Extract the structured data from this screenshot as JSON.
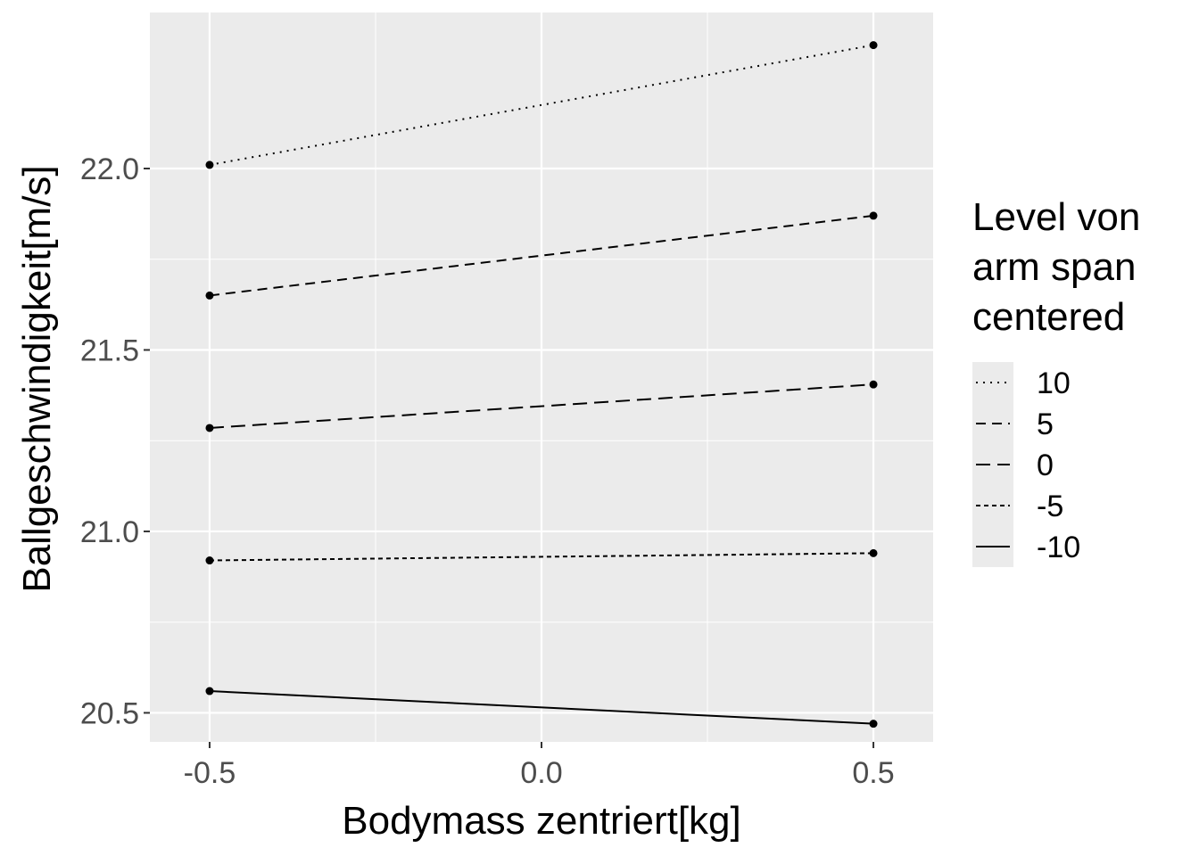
{
  "chart_data": {
    "type": "line",
    "xlabel": "Bodymass zentriert[kg]",
    "ylabel": "Ballgeschwindigkeit[m/s]",
    "x": [
      -0.5,
      0.5
    ],
    "xlim": [
      -0.59,
      0.59
    ],
    "ylim": [
      20.42,
      22.43
    ],
    "x_ticks": [
      -0.5,
      0.0,
      0.5
    ],
    "x_tick_labels": [
      "-0.5",
      "0.0",
      "0.5"
    ],
    "y_ticks": [
      20.5,
      21.0,
      21.5,
      22.0
    ],
    "y_tick_labels": [
      "20.5",
      "21.0",
      "21.5",
      "22.0"
    ],
    "grid": true,
    "legend": {
      "position": "right",
      "title_lines": [
        "Level von",
        "arm span",
        "centered"
      ]
    },
    "series": [
      {
        "name": "10",
        "values": [
          22.01,
          22.34
        ],
        "linestyle": "dotted"
      },
      {
        "name": "5",
        "values": [
          21.65,
          21.87
        ],
        "linestyle": "dashed"
      },
      {
        "name": "0",
        "values": [
          21.285,
          21.405
        ],
        "linestyle": "longdash"
      },
      {
        "name": "-5",
        "values": [
          20.92,
          20.94
        ],
        "linestyle": "shortdash"
      },
      {
        "name": "-10",
        "values": [
          20.56,
          20.47
        ],
        "linestyle": "solid"
      }
    ],
    "colors": {
      "panel": "#ebebeb",
      "grid": "#ffffff",
      "line": "#000000",
      "tick": "#4d4d4d"
    }
  }
}
